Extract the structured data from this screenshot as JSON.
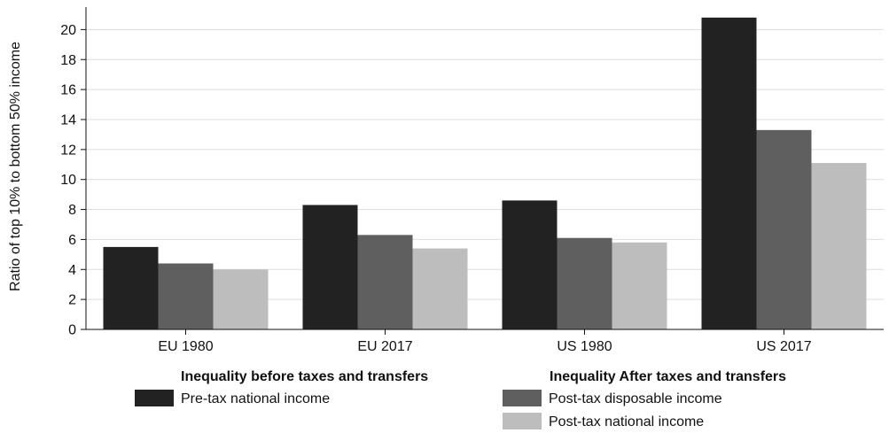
{
  "chart_data": {
    "type": "bar",
    "categories": [
      "EU 1980",
      "EU 2017",
      "US 1980",
      "US 2017"
    ],
    "series": [
      {
        "name": "Pre-tax national income",
        "values": [
          5.5,
          8.3,
          8.6,
          20.8
        ],
        "color": "#222222"
      },
      {
        "name": "Post-tax disposable income",
        "values": [
          4.4,
          6.3,
          6.1,
          13.3
        ],
        "color": "#5f5f5f"
      },
      {
        "name": "Post-tax national income",
        "values": [
          4.0,
          5.4,
          5.8,
          11.1
        ],
        "color": "#bdbdbd"
      }
    ],
    "xlabel": "",
    "ylabel": "Ratio of top 10% to bottom 50% income",
    "ylim": [
      0,
      21.5
    ],
    "yticks": [
      0,
      2,
      4,
      6,
      8,
      10,
      12,
      14,
      16,
      18,
      20
    ],
    "grid": true,
    "gridlines_color": "#dddddd",
    "legend": {
      "placement": "bottom",
      "groups": [
        {
          "heading": "Inequality before taxes and transfers",
          "series": [
            0
          ]
        },
        {
          "heading": "Inequality After taxes and transfers",
          "series": [
            1,
            2
          ]
        }
      ]
    }
  }
}
